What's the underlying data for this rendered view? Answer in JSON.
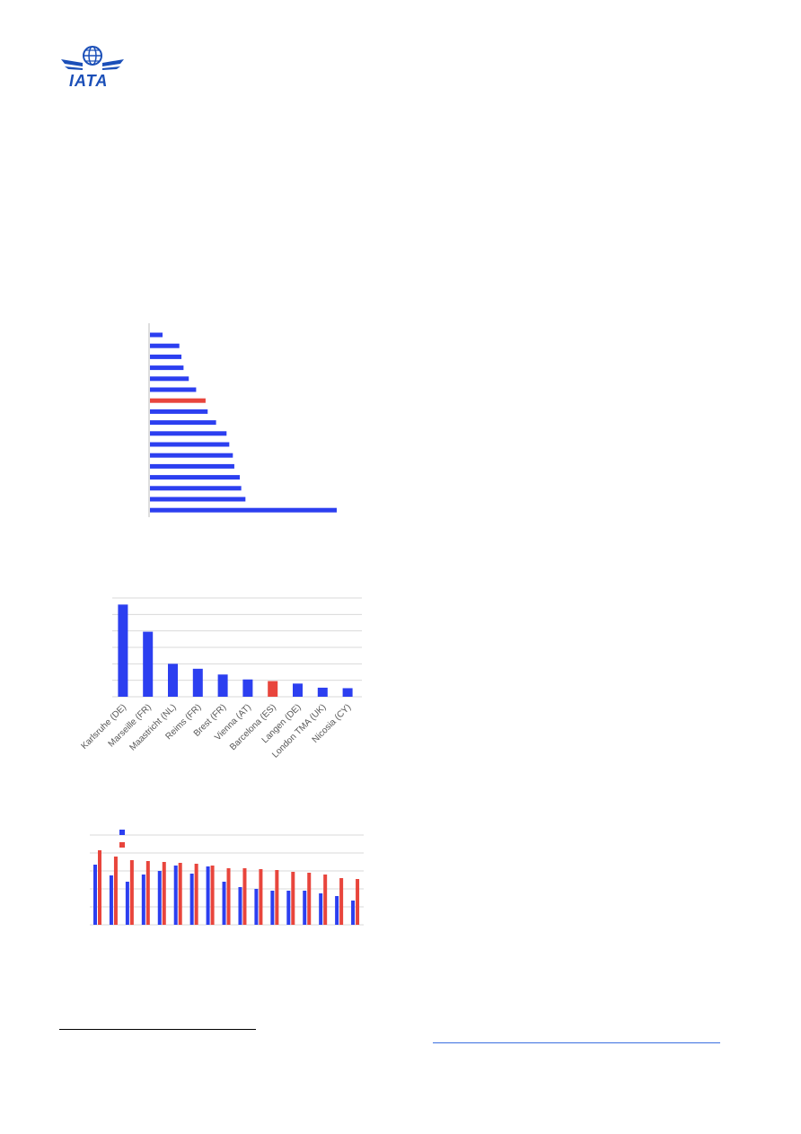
{
  "logo": {
    "text": "IATA",
    "icon": "globe-wings-icon",
    "color": "#1b4fb8"
  },
  "colors": {
    "primary": "#2c3ff0",
    "highlight": "#e8453c",
    "grid": "#d9d9d9",
    "axis": "#bdbdbd"
  },
  "chart_data": [
    {
      "type": "bar",
      "orientation": "horizontal",
      "values": [
        0.6,
        1.4,
        1.5,
        1.6,
        1.85,
        2.2,
        2.65,
        2.75,
        3.15,
        3.65,
        3.78,
        3.95,
        4.02,
        4.28,
        4.35,
        4.55,
        8.9
      ],
      "highlight_index": 6,
      "xlim": [
        0,
        9.5
      ],
      "grid": false
    },
    {
      "type": "bar",
      "categories": [
        "Karlsruhe (DE)",
        "Marseille (FR)",
        "Maastricht (NL)",
        "Reims (FR)",
        "Brest (FR)",
        "Vienna (AT)",
        "Barcelona (ES)",
        "Langen (DE)",
        "London TMA (UK)",
        "Nicosia (CY)"
      ],
      "values": [
        5.6,
        3.95,
        2.0,
        1.7,
        1.35,
        1.05,
        0.95,
        0.8,
        0.55,
        0.52
      ],
      "highlight_index": 6,
      "ylim": [
        0,
        6
      ],
      "grid": true
    },
    {
      "type": "bar",
      "legend": "top-left",
      "series": [
        {
          "color": "#2c3ff0",
          "values": [
            3.35,
            2.75,
            2.4,
            2.8,
            3.0,
            3.3,
            2.85,
            3.25,
            2.4,
            2.1,
            2.0,
            1.9,
            1.9,
            1.9,
            1.75,
            1.6,
            1.35
          ]
        },
        {
          "color": "#e8453c",
          "values": [
            4.15,
            3.8,
            3.6,
            3.55,
            3.5,
            3.45,
            3.4,
            3.3,
            3.15,
            3.15,
            3.1,
            3.05,
            2.95,
            2.9,
            2.8,
            2.6,
            2.55
          ]
        }
      ],
      "ylim": [
        0,
        5
      ],
      "grid": true
    }
  ]
}
